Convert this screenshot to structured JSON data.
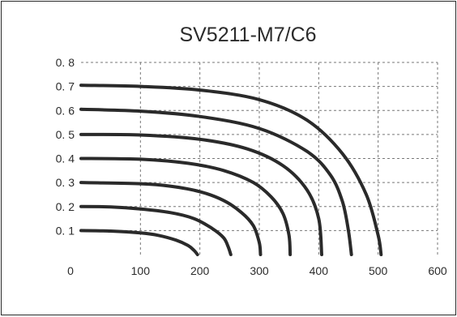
{
  "chart_data": {
    "type": "line",
    "title": "SV5211-M7/C6",
    "xlabel": "",
    "ylabel": "",
    "xlim": [
      0,
      600
    ],
    "ylim": [
      0,
      0.8
    ],
    "xticks": [
      0,
      100,
      200,
      300,
      400,
      500,
      600
    ],
    "xtick_labels": [
      "0",
      "100",
      "200",
      "300",
      "400",
      "500",
      "600"
    ],
    "yticks": [
      0.1,
      0.2,
      0.3,
      0.4,
      0.5,
      0.6,
      0.7,
      0.8
    ],
    "ytick_labels": [
      "0. 1",
      "0. 2",
      "0. 3",
      "0. 4",
      "0. 5",
      "0. 6",
      "0. 7",
      "0. 8"
    ],
    "grid": true,
    "legend": "none",
    "series_color": "#2a2a2a",
    "series": [
      {
        "x": [
          0,
          50,
          100,
          130,
          160,
          180,
          190,
          196
        ],
        "y": [
          0.1,
          0.098,
          0.09,
          0.08,
          0.06,
          0.038,
          0.018,
          0.0
        ]
      },
      {
        "x": [
          0,
          50,
          100,
          150,
          190,
          220,
          240,
          248,
          252
        ],
        "y": [
          0.2,
          0.198,
          0.19,
          0.175,
          0.15,
          0.11,
          0.07,
          0.03,
          0.0
        ]
      },
      {
        "x": [
          0,
          100,
          150,
          200,
          240,
          270,
          290,
          300,
          302
        ],
        "y": [
          0.3,
          0.295,
          0.285,
          0.262,
          0.225,
          0.175,
          0.12,
          0.05,
          0.0
        ]
      },
      {
        "x": [
          0,
          100,
          180,
          240,
          290,
          320,
          340,
          350,
          352
        ],
        "y": [
          0.4,
          0.397,
          0.38,
          0.35,
          0.3,
          0.24,
          0.17,
          0.08,
          0.0
        ]
      },
      {
        "x": [
          0,
          100,
          200,
          280,
          340,
          380,
          400,
          405
        ],
        "y": [
          0.5,
          0.498,
          0.48,
          0.44,
          0.37,
          0.27,
          0.15,
          0.0
        ]
      },
      {
        "x": [
          0,
          100,
          200,
          300,
          380,
          420,
          440,
          450,
          455
        ],
        "y": [
          0.605,
          0.597,
          0.575,
          0.525,
          0.43,
          0.33,
          0.22,
          0.1,
          0.0
        ]
      },
      {
        "x": [
          0,
          100,
          200,
          300,
          380,
          440,
          480,
          500,
          505
        ],
        "y": [
          0.705,
          0.7,
          0.685,
          0.645,
          0.56,
          0.42,
          0.25,
          0.08,
          0.0
        ]
      }
    ]
  }
}
